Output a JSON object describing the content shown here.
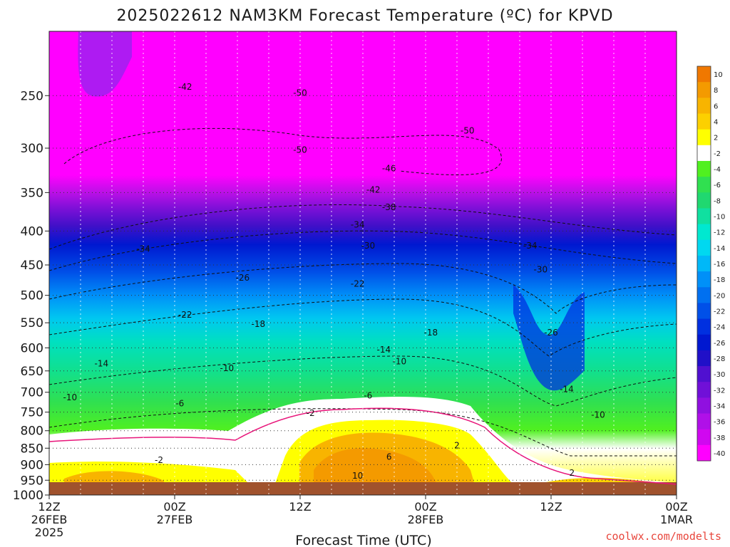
{
  "title": "2025022612 NAM3KM Forecast Temperature (ºC) for KPVD",
  "xlabel": "Forecast Time (UTC)",
  "credit": "coolwx.com/modelts",
  "chart_data": {
    "type": "heatmap",
    "title": "2025022612 NAM3KM Forecast Temperature (ºC) for KPVD",
    "xlabel": "Forecast Time (UTC)",
    "ylabel": "",
    "y_scale": "log-pressure (hPa), inverted",
    "ylim": [
      1000,
      200
    ],
    "y_ticks": [
      250,
      300,
      350,
      400,
      450,
      500,
      550,
      600,
      650,
      700,
      750,
      800,
      850,
      900,
      950,
      1000
    ],
    "x_ticks": [
      {
        "hour": 0,
        "label": "12Z",
        "sub": "26FEB",
        "sub2": "2025"
      },
      {
        "hour": 12,
        "label": "00Z",
        "sub": "27FEB",
        "sub2": ""
      },
      {
        "hour": 24,
        "label": "12Z",
        "sub": "",
        "sub2": ""
      },
      {
        "hour": 36,
        "label": "00Z",
        "sub": "28FEB",
        "sub2": ""
      },
      {
        "hour": 48,
        "label": "12Z",
        "sub": "",
        "sub2": ""
      },
      {
        "hour": 60,
        "label": "00Z",
        "sub": "1MAR",
        "sub2": ""
      }
    ],
    "xlim_hours": [
      0,
      60
    ],
    "grid": true,
    "colorbar": {
      "levels": [
        10,
        8,
        6,
        4,
        2,
        -2,
        -4,
        -6,
        -8,
        -10,
        -12,
        -14,
        -16,
        -18,
        -20,
        -22,
        -24,
        -26,
        -28,
        -30,
        -32,
        -34,
        -36,
        -38,
        -40
      ],
      "colors": [
        "#f07800",
        "#f49a00",
        "#f8b400",
        "#fcd000",
        "#ffff00",
        "#ffffff",
        "#50f020",
        "#30e050",
        "#20d870",
        "#10e0a0",
        "#00e8d0",
        "#00d8f0",
        "#00b8f8",
        "#0090f8",
        "#0070f0",
        "#0050e8",
        "#0030e0",
        "#0018d0",
        "#2010c8",
        "#5010d0",
        "#7010d8",
        "#9010e0",
        "#b010e8",
        "#d008f0",
        "#ff00ff"
      ],
      "position": "right"
    },
    "isotherm_labels": [
      {
        "v": -42,
        "hour": 13,
        "p": 245
      },
      {
        "v": -50,
        "hour": 24,
        "p": 250
      },
      {
        "v": -50,
        "hour": 40,
        "p": 285
      },
      {
        "v": -50,
        "hour": 24,
        "p": 305
      },
      {
        "v": -46,
        "hour": 32.5,
        "p": 325
      },
      {
        "v": -42,
        "hour": 31,
        "p": 350
      },
      {
        "v": -38,
        "hour": 32.5,
        "p": 372
      },
      {
        "v": -34,
        "hour": 29.5,
        "p": 395
      },
      {
        "v": -34,
        "hour": 9,
        "p": 430
      },
      {
        "v": -34,
        "hour": 46,
        "p": 425
      },
      {
        "v": -30,
        "hour": 30.5,
        "p": 425
      },
      {
        "v": -30,
        "hour": 47,
        "p": 462
      },
      {
        "v": -26,
        "hour": 18.5,
        "p": 475
      },
      {
        "v": -26,
        "hour": 48,
        "p": 575
      },
      {
        "v": -22,
        "hour": 29.5,
        "p": 485
      },
      {
        "v": -22,
        "hour": 13,
        "p": 540
      },
      {
        "v": -18,
        "hour": 20,
        "p": 558
      },
      {
        "v": -18,
        "hour": 36.5,
        "p": 575
      },
      {
        "v": -14,
        "hour": 32,
        "p": 610
      },
      {
        "v": -14,
        "hour": 5,
        "p": 640
      },
      {
        "v": -14,
        "hour": 49.5,
        "p": 700
      },
      {
        "v": -10,
        "hour": 17,
        "p": 650
      },
      {
        "v": -10,
        "hour": 33.5,
        "p": 635
      },
      {
        "v": -10,
        "hour": 2,
        "p": 720
      },
      {
        "v": -10,
        "hour": 52.5,
        "p": 765
      },
      {
        "v": -6,
        "hour": 12.5,
        "p": 735
      },
      {
        "v": -6,
        "hour": 30.5,
        "p": 715
      },
      {
        "v": -2,
        "hour": 25,
        "p": 760
      },
      {
        "v": 2,
        "hour": 39,
        "p": 850
      },
      {
        "v": 6,
        "hour": 32.5,
        "p": 885
      },
      {
        "v": 10,
        "hour": 29.5,
        "p": 945
      },
      {
        "v": -2,
        "hour": 10.5,
        "p": 895
      },
      {
        "v": 2,
        "hour": 50,
        "p": 935
      }
    ]
  }
}
